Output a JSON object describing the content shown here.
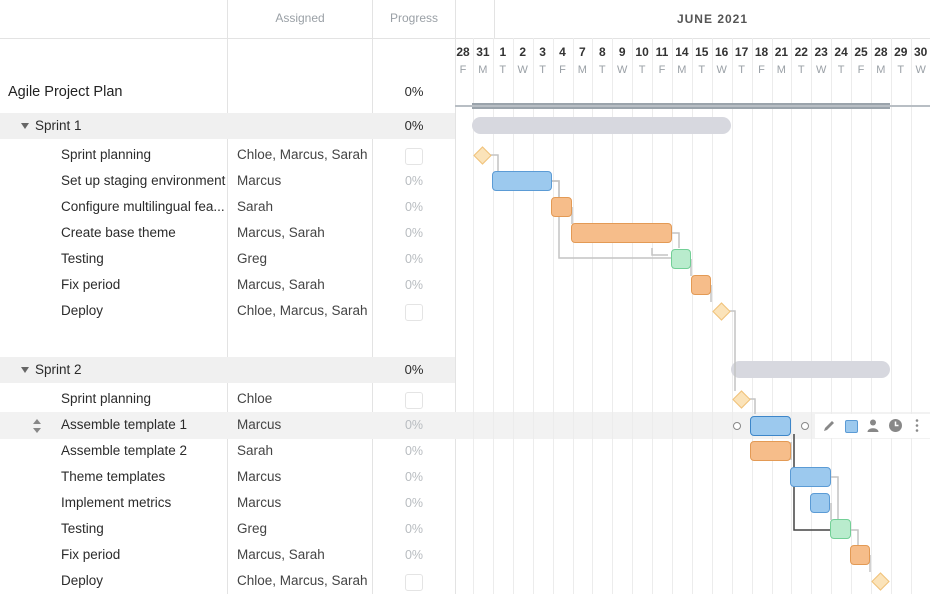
{
  "header": {
    "assigned_label": "Assigned",
    "progress_label": "Progress",
    "month_label": "JUNE 2021"
  },
  "timeline": {
    "days": [
      "28",
      "31",
      "1",
      "2",
      "3",
      "4",
      "7",
      "8",
      "9",
      "10",
      "11",
      "14",
      "15",
      "16",
      "17",
      "18",
      "21",
      "22",
      "23",
      "24",
      "25",
      "28",
      "29",
      "30"
    ],
    "weekdays": [
      "F",
      "M",
      "T",
      "W",
      "T",
      "F",
      "M",
      "T",
      "W",
      "T",
      "F",
      "M",
      "T",
      "W",
      "T",
      "F",
      "M",
      "T",
      "W",
      "T",
      "F",
      "M",
      "T",
      "W"
    ]
  },
  "project": {
    "title": "Agile Project Plan",
    "progress": "0%"
  },
  "sprint1": {
    "title": "Sprint 1",
    "progress": "0%",
    "tasks": [
      {
        "name": "Sprint planning",
        "assigned": "Chloe, Marcus, Sarah",
        "progress": ""
      },
      {
        "name": "Set up staging environment",
        "assigned": "Marcus",
        "progress": "0%"
      },
      {
        "name": "Configure multilingual fea...",
        "assigned": "Sarah",
        "progress": "0%"
      },
      {
        "name": "Create base theme",
        "assigned": "Marcus, Sarah",
        "progress": "0%"
      },
      {
        "name": "Testing",
        "assigned": "Greg",
        "progress": "0%"
      },
      {
        "name": "Fix period",
        "assigned": "Marcus, Sarah",
        "progress": "0%"
      },
      {
        "name": "Deploy",
        "assigned": "Chloe, Marcus, Sarah",
        "progress": ""
      }
    ]
  },
  "sprint2": {
    "title": "Sprint 2",
    "progress": "0%",
    "tasks": [
      {
        "name": "Sprint planning",
        "assigned": "Chloe",
        "progress": ""
      },
      {
        "name": "Assemble template 1",
        "assigned": "Marcus",
        "progress": "0%"
      },
      {
        "name": "Assemble template 2",
        "assigned": "Sarah",
        "progress": "0%"
      },
      {
        "name": "Theme templates",
        "assigned": "Marcus",
        "progress": "0%"
      },
      {
        "name": "Implement metrics",
        "assigned": "Marcus",
        "progress": "0%"
      },
      {
        "name": "Testing",
        "assigned": "Greg",
        "progress": "0%"
      },
      {
        "name": "Fix period",
        "assigned": "Marcus, Sarah",
        "progress": "0%"
      },
      {
        "name": "Deploy",
        "assigned": "Chloe, Marcus, Sarah",
        "progress": ""
      }
    ]
  },
  "colors": {
    "task_blue": "#9cc9ee",
    "task_orange": "#f6bd8a",
    "task_green": "#b9eccd",
    "milestone": "#fbe3b9",
    "summary_bar": "#d7d8df",
    "project_bar": "#9aa3ab"
  },
  "row_toolbar_icons": [
    "pencil-icon",
    "color-square-icon",
    "person-icon",
    "clock-icon",
    "more-icon"
  ]
}
